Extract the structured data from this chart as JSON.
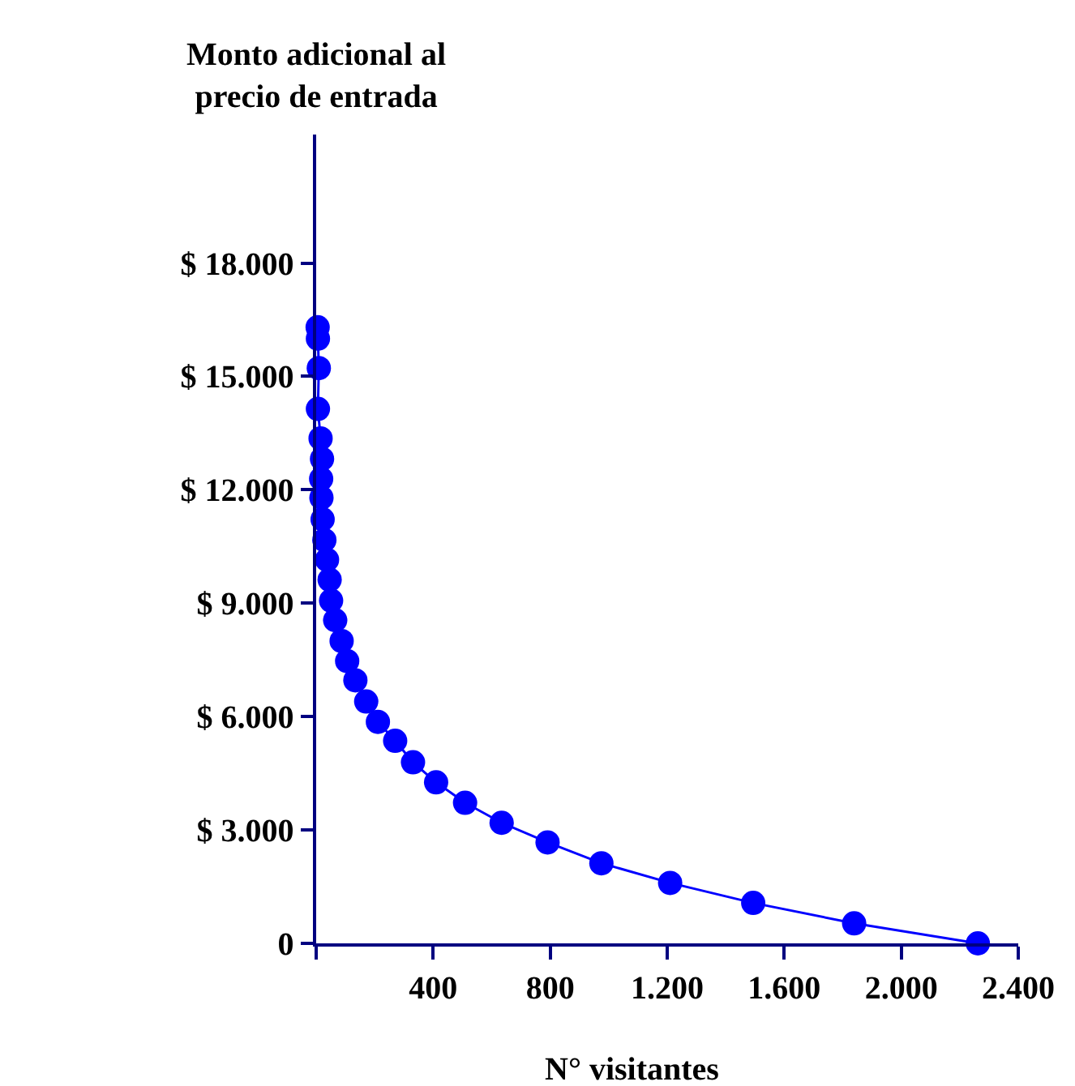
{
  "chart_data": {
    "type": "line",
    "xlabel": "N° visitantes",
    "ylabel": "Monto adicional al\nprecio de entrada",
    "x": [
      5,
      6,
      9,
      6,
      15,
      20,
      17,
      18,
      22,
      28,
      37,
      46,
      51,
      65,
      87,
      106,
      134,
      171,
      211,
      270,
      331,
      410,
      509,
      634,
      791,
      975,
      1210,
      1494,
      1839,
      2262
    ],
    "series": [
      {
        "color": "#0000ff",
        "values": [
          16300,
          16000,
          15220,
          14140,
          13360,
          12820,
          12290,
          11790,
          11220,
          10670,
          10150,
          9620,
          9070,
          8550,
          8000,
          7470,
          6960,
          6400,
          5860,
          5360,
          4790,
          4260,
          3720,
          3190,
          2670,
          2120,
          1600,
          1070,
          530,
          0
        ]
      }
    ],
    "marker": "circle",
    "line_style": "solid",
    "xlim": [
      0,
      2400
    ],
    "xticks": [
      {
        "value": 0,
        "label": null
      },
      {
        "value": 400,
        "label": "400"
      },
      {
        "value": 800,
        "label": "800"
      },
      {
        "value": 1200,
        "label": "1.200"
      },
      {
        "value": 1600,
        "label": "1.600"
      },
      {
        "value": 2000,
        "label": "2.000"
      },
      {
        "value": 2400,
        "label": "2.400"
      }
    ],
    "ylim": [
      0,
      21400
    ],
    "yticks": [
      {
        "value": 0,
        "label": "0"
      },
      {
        "value": 3000,
        "label": "$ 3.000"
      },
      {
        "value": 6000,
        "label": "$ 6.000"
      },
      {
        "value": 9000,
        "label": "$ 9.000"
      },
      {
        "value": 12000,
        "label": "$ 12.000"
      },
      {
        "value": 15000,
        "label": "$ 15.000"
      },
      {
        "value": 18000,
        "label": "$ 18.000"
      }
    ]
  }
}
